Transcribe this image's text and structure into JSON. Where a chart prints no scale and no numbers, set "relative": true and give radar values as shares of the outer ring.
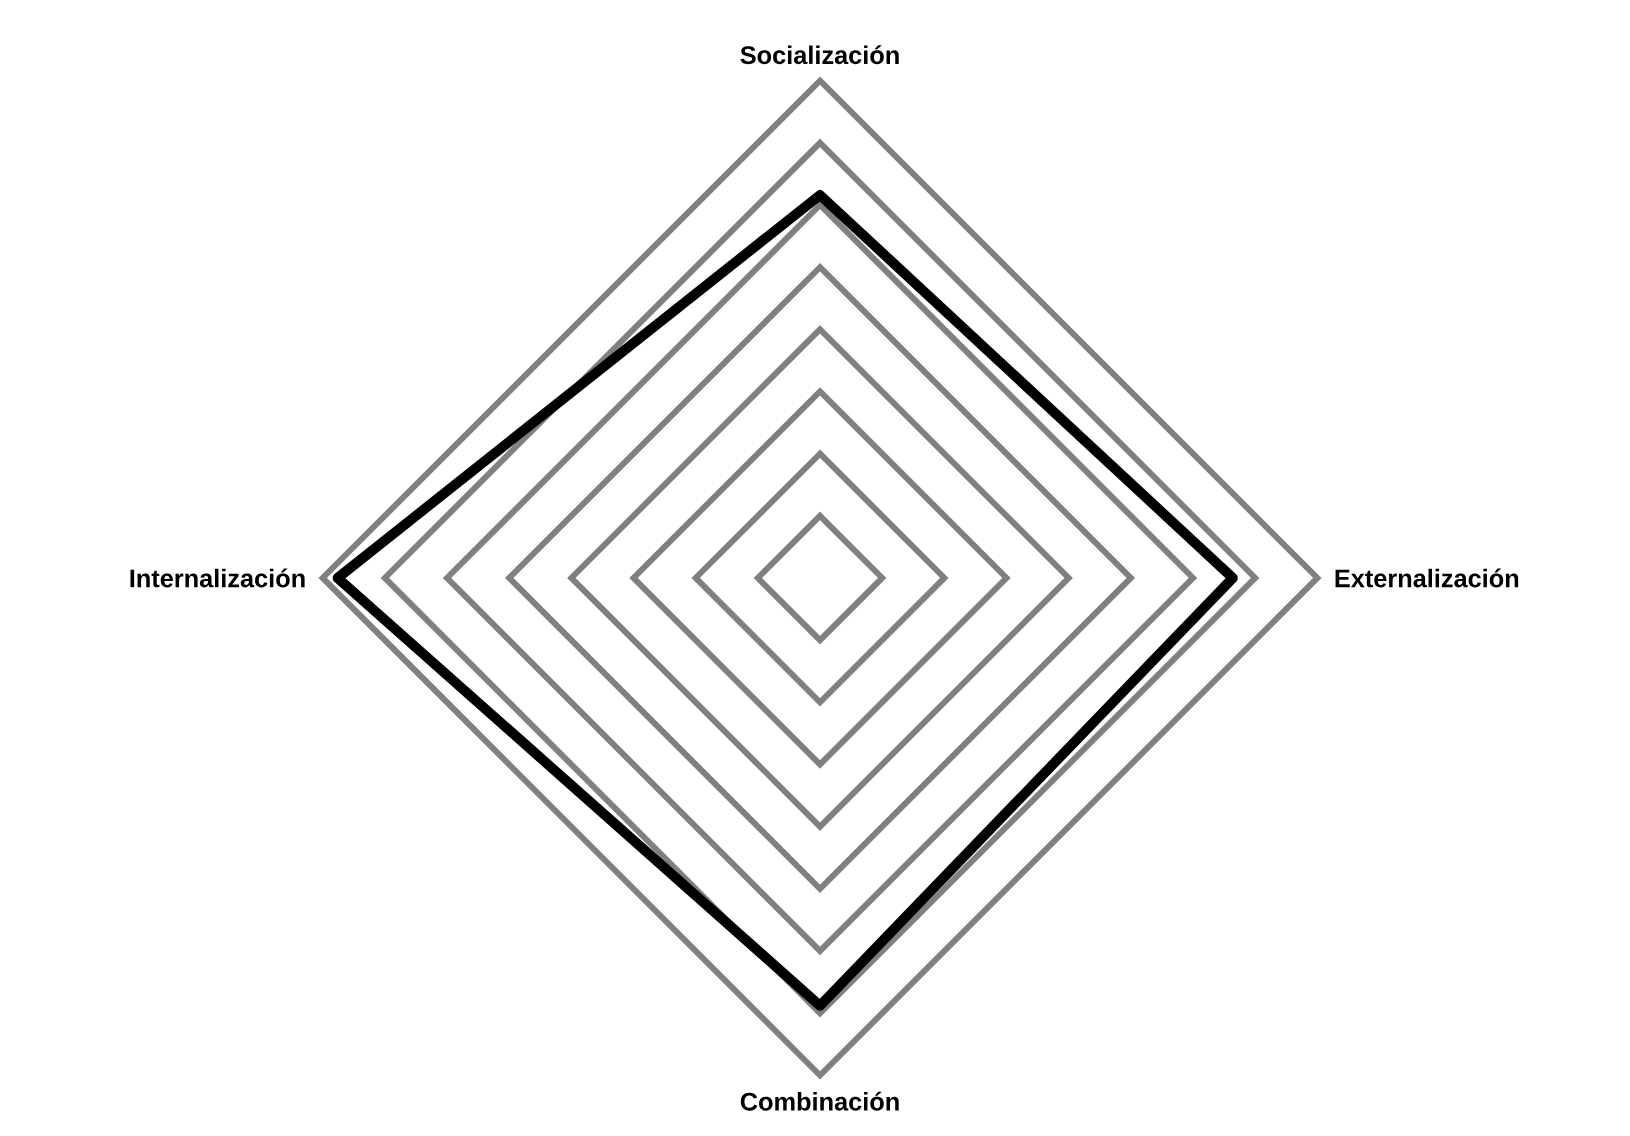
{
  "chart_data": {
    "type": "radar",
    "relative": true,
    "grid": true,
    "categories": [
      "Socialización",
      "Externalización",
      "Combinación",
      "Internalización"
    ],
    "series": [
      {
        "color": "#000000",
        "values": [
          0.77,
          0.83,
          0.86,
          0.97
        ]
      }
    ]
  }
}
